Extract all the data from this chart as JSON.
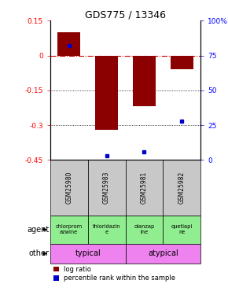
{
  "title": "GDS775 / 13346",
  "samples": [
    "GSM25980",
    "GSM25983",
    "GSM25981",
    "GSM25982"
  ],
  "log_ratios": [
    0.1,
    -0.32,
    -0.22,
    -0.06
  ],
  "percentile_ranks": [
    82,
    3,
    6,
    28
  ],
  "left_ylim": [
    -0.45,
    0.15
  ],
  "left_yticks": [
    0.15,
    0.0,
    -0.15,
    -0.3,
    -0.45
  ],
  "left_ytick_labels": [
    "0.15",
    "0",
    "-0.15",
    "-0.3",
    "-0.45"
  ],
  "right_yticks": [
    100,
    75,
    50,
    25,
    0
  ],
  "right_ytick_labels": [
    "100%",
    "75",
    "50",
    "25",
    "0"
  ],
  "bar_color": "#8B0000",
  "dot_color": "#0000CC",
  "zero_line_color": "#cc0000",
  "grid_color": "#000000",
  "agent_labels": [
    "chlorprom\nazwine",
    "thioridazin\ne",
    "olanzap\nine",
    "quetiapi\nne"
  ],
  "agent_bg": "#90EE90",
  "sample_bg": "#C8C8C8",
  "other_bg": "#EE82EE",
  "legend_red_label": "log ratio",
  "legend_blue_label": "percentile rank within the sample",
  "bar_width": 0.6
}
